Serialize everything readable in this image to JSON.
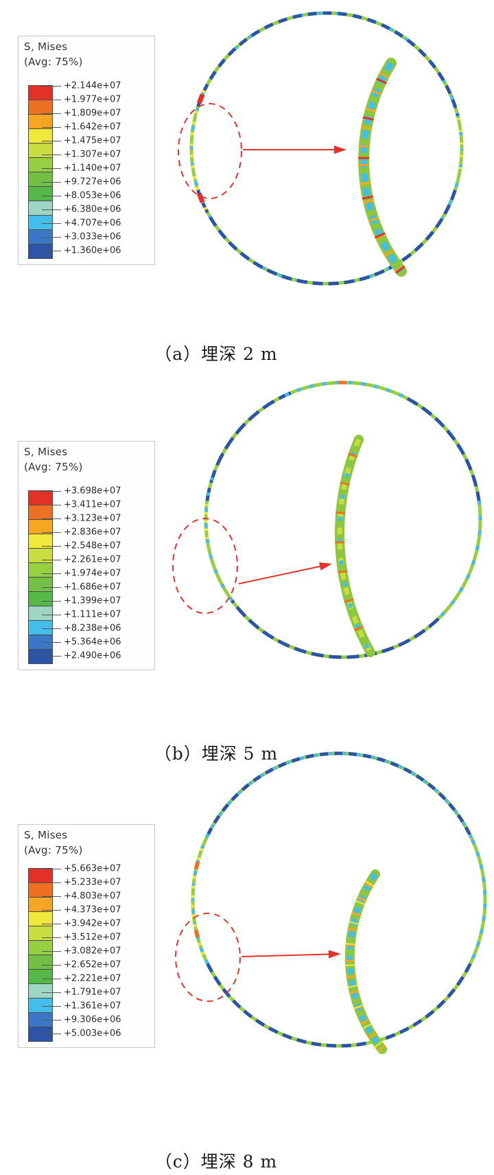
{
  "figure": {
    "accent_red": "#e53228",
    "spectrum": [
      "#e23227",
      "#ee7023",
      "#f6a622",
      "#f0e93b",
      "#c9dd40",
      "#97cf43",
      "#72c146",
      "#57b84a",
      "#9dd6c4",
      "#45bde9",
      "#3a77c6",
      "#2c55a8"
    ],
    "panels": [
      {
        "id": "a",
        "legend": {
          "title": "S, Mises",
          "avg": "(Avg: 75%)",
          "values": [
            "+2.144e+07",
            "+1.977e+07",
            "+1.809e+07",
            "+1.642e+07",
            "+1.475e+07",
            "+1.307e+07",
            "+1.140e+07",
            "+9.727e+06",
            "+8.053e+06",
            "+6.380e+06",
            "+4.707e+06",
            "+3.033e+06",
            "+1.360e+06"
          ]
        },
        "caption": "（a）埋深 2 m",
        "viz": {
          "ring": [
            {
              "from": 0,
              "to": 360,
              "color": "#97cf43",
              "w": 5
            },
            {
              "from": 0,
              "to": 360,
              "color": "#45bde9",
              "w": 5,
              "dash": "6 21",
              "off": 3
            },
            {
              "from": -72,
              "to": 76,
              "color": "#2c55a8",
              "w": 5,
              "dash": "13 9"
            },
            {
              "from": 108,
              "to": 252,
              "color": "#2c55a8",
              "w": 5,
              "dash": "15 8"
            },
            {
              "from": 243,
              "to": 296,
              "color": "#f0e93b",
              "w": 5,
              "dash": "4 12"
            },
            {
              "from": 77,
              "to": 103,
              "color": "#f0e93b",
              "w": 5,
              "dash": "3 15"
            },
            {
              "from": 246.5,
              "to": 250.5,
              "color": "#e23227",
              "w": 7
            },
            {
              "from": 289.5,
              "to": 293.5,
              "color": "#e23227",
              "w": 7
            }
          ],
          "cres_base": {
            "color": "#8cc73f",
            "w": 16
          },
          "cres_overlays": [
            {
              "color": "#45bde9",
              "w": 9,
              "dash": "12 9",
              "off": 0
            },
            {
              "color": "#f6a622",
              "w": 16,
              "dash": "3 24",
              "off": 8
            },
            {
              "color": "#e23227",
              "w": 16,
              "dash": "3 55",
              "off": 30
            }
          ]
        }
      },
      {
        "id": "b",
        "legend": {
          "title": "S, Mises",
          "avg": "(Avg: 75%)",
          "values": [
            "+3.698e+07",
            "+3.411e+07",
            "+3.123e+07",
            "+2.836e+07",
            "+2.548e+07",
            "+2.261e+07",
            "+1.974e+07",
            "+1.686e+07",
            "+1.399e+07",
            "+1.111e+07",
            "+8.238e+06",
            "+5.364e+06",
            "+2.490e+06"
          ]
        },
        "caption": "（b）埋深 5 m",
        "viz": {
          "ring": [
            {
              "from": 0,
              "to": 360,
              "color": "#97cf43",
              "w": 5
            },
            {
              "from": -82,
              "to": -22,
              "color": "#2c55a8",
              "w": 5,
              "dash": "19 8"
            },
            {
              "from": 28,
              "to": 82,
              "color": "#2c55a8",
              "w": 5,
              "dash": "17 8"
            },
            {
              "from": 136,
              "to": 234,
              "color": "#2c55a8",
              "w": 5,
              "dash": "18 8"
            },
            {
              "from": -25,
              "to": 28,
              "color": "#45bde9",
              "w": 5,
              "dash": "6 13"
            },
            {
              "from": 82,
              "to": 136,
              "color": "#45bde9",
              "w": 5,
              "dash": "6 16"
            },
            {
              "from": 234,
              "to": 288,
              "color": "#45bde9",
              "w": 5,
              "dash": "5 18"
            },
            {
              "from": -2,
              "to": 1.5,
              "color": "#ee7023",
              "w": 5
            },
            {
              "from": 262,
              "to": 279,
              "color": "#f0e93b",
              "w": 5,
              "dash": "3 9"
            }
          ],
          "cres_base": {
            "color": "#8cc73f",
            "w": 14
          },
          "cres_overlays": [
            {
              "color": "#c9dd40",
              "w": 7,
              "dash": "10 12",
              "off": 0
            },
            {
              "color": "#45bde9",
              "w": 6,
              "dash": "6 26",
              "off": 12
            },
            {
              "color": "#ee7023",
              "w": 14,
              "dash": "3 40",
              "off": 20
            }
          ]
        }
      },
      {
        "id": "c",
        "legend": {
          "title": "S, Mises",
          "avg": "(Avg: 75%)",
          "values": [
            "+5.663e+07",
            "+5.233e+07",
            "+4.803e+07",
            "+4.373e+07",
            "+3.942e+07",
            "+3.512e+07",
            "+3.082e+07",
            "+2.652e+07",
            "+2.221e+07",
            "+1.791e+07",
            "+1.361e+07",
            "+9.306e+06",
            "+5.003e+06"
          ]
        },
        "caption": "（c）埋深 8 m",
        "viz": {
          "ring": [
            {
              "from": 0,
              "to": 360,
              "color": "#97cf43",
              "w": 5
            },
            {
              "from": -64,
              "to": 66,
              "color": "#2c55a8",
              "w": 5,
              "dash": "12 9"
            },
            {
              "from": -64,
              "to": 66,
              "color": "#45bde9",
              "w": 5,
              "dash": "5 16",
              "off": 8
            },
            {
              "from": 116,
              "to": 244,
              "color": "#2c55a8",
              "w": 5,
              "dash": "14 8"
            },
            {
              "from": 66,
              "to": 116,
              "color": "#45bde9",
              "w": 5,
              "dash": "6 13"
            },
            {
              "from": 244,
              "to": 300,
              "color": "#45bde9",
              "w": 5,
              "dash": "6 13"
            },
            {
              "from": 248,
              "to": 292,
              "color": "#f0e93b",
              "w": 5,
              "dash": "4 10"
            },
            {
              "from": 255,
              "to": 258,
              "color": "#ee7023",
              "w": 6
            },
            {
              "from": 282,
              "to": 285,
              "color": "#ee7023",
              "w": 6
            }
          ],
          "cres_base": {
            "color": "#8cc73f",
            "w": 14
          },
          "cres_overlays": [
            {
              "color": "#45bde9",
              "w": 8,
              "dash": "9 9",
              "off": 0
            },
            {
              "color": "#f6a622",
              "w": 14,
              "dash": "3 20",
              "off": 6
            },
            {
              "color": "#f0e93b",
              "w": 14,
              "dash": "2 29",
              "off": 16
            }
          ]
        }
      }
    ]
  },
  "chart_data": [
    {
      "type": "heatmap",
      "title": "S, Mises (Avg: 75%)",
      "caption": "（a）埋深 2 m",
      "burial_depth_m": 2,
      "units": "Pa",
      "colormap": "abaqus-rainbow-12",
      "legend_position": "top-left",
      "legend_labels": [
        "+2.144e+07",
        "+1.977e+07",
        "+1.809e+07",
        "+1.642e+07",
        "+1.475e+07",
        "+1.307e+07",
        "+1.140e+07",
        "+9.727e+06",
        "+8.053e+06",
        "+6.380e+06",
        "+4.707e+06",
        "+3.033e+06",
        "+1.360e+06"
      ],
      "legend_values_pa": [
        21440000,
        19770000,
        18090000,
        16420000,
        14750000,
        13070000,
        11400000,
        9727000,
        8053000,
        6380000,
        4707000,
        3033000,
        1360000
      ],
      "value_range_pa": [
        1360000,
        21440000
      ]
    },
    {
      "type": "heatmap",
      "title": "S, Mises (Avg: 75%)",
      "caption": "（b）埋深 5 m",
      "burial_depth_m": 5,
      "units": "Pa",
      "colormap": "abaqus-rainbow-12",
      "legend_position": "top-left",
      "legend_labels": [
        "+3.698e+07",
        "+3.411e+07",
        "+3.123e+07",
        "+2.836e+07",
        "+2.548e+07",
        "+2.261e+07",
        "+1.974e+07",
        "+1.686e+07",
        "+1.399e+07",
        "+1.111e+07",
        "+8.238e+06",
        "+5.364e+06",
        "+2.490e+06"
      ],
      "legend_values_pa": [
        36980000,
        34110000,
        31230000,
        28360000,
        25480000,
        22610000,
        19740000,
        16860000,
        13990000,
        11110000,
        8238000,
        5364000,
        2490000
      ],
      "value_range_pa": [
        2490000,
        36980000
      ]
    },
    {
      "type": "heatmap",
      "title": "S, Mises (Avg: 75%)",
      "caption": "（c）埋深 8 m",
      "burial_depth_m": 8,
      "units": "Pa",
      "colormap": "abaqus-rainbow-12",
      "legend_position": "top-left",
      "legend_labels": [
        "+5.663e+07",
        "+5.233e+07",
        "+4.803e+07",
        "+4.373e+07",
        "+3.942e+07",
        "+3.512e+07",
        "+3.082e+07",
        "+2.652e+07",
        "+2.221e+07",
        "+1.791e+07",
        "+1.361e+07",
        "+9.306e+06",
        "+5.003e+06"
      ],
      "legend_values_pa": [
        56630000,
        52330000,
        48030000,
        43730000,
        39420000,
        35120000,
        30820000,
        26520000,
        22210000,
        17910000,
        13610000,
        9306000,
        5003000
      ],
      "value_range_pa": [
        5003000,
        56630000
      ]
    }
  ]
}
